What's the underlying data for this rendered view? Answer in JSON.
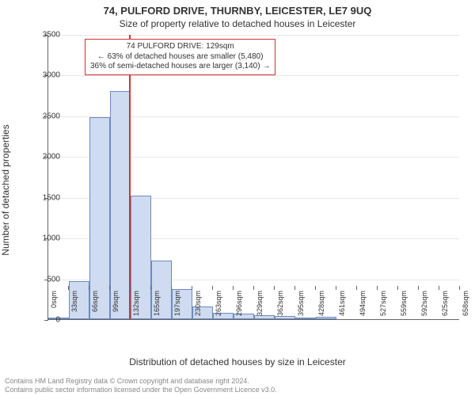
{
  "title_main": "74, PULFORD DRIVE, THURNBY, LEICESTER, LE7 9UQ",
  "title_sub": "Size of property relative to detached houses in Leicester",
  "ylabel": "Number of detached properties",
  "xlabel": "Distribution of detached houses by size in Leicester",
  "footer_line1": "Contains HM Land Registry data © Crown copyright and database right 2024.",
  "footer_line2": "Contains public sector information licensed under the Open Government Licence v3.0.",
  "annotation": {
    "line1": "74 PULFORD DRIVE: 129sqm",
    "line2": "← 63% of detached houses are smaller (5,480)",
    "line3": "36% of semi-detached houses are larger (3,140) →"
  },
  "chart": {
    "type": "histogram",
    "background_color": "#ffffff",
    "grid_color": "#e8e8e8",
    "axis_color": "#666666",
    "bar_fill": "#cedbf0",
    "bar_stroke": "#6d8abf",
    "marker_color": "#d23333",
    "marker_value": 129,
    "ylim": [
      0,
      3500
    ],
    "ytick_step": 500,
    "xticks": [
      0,
      33,
      66,
      99,
      132,
      165,
      197,
      230,
      263,
      296,
      329,
      362,
      395,
      428,
      461,
      494,
      527,
      559,
      592,
      625,
      658
    ],
    "xtick_unit": "sqm",
    "bar_bin_width": 33,
    "bars": [
      {
        "x0": 0,
        "value": 20
      },
      {
        "x0": 33,
        "value": 470
      },
      {
        "x0": 66,
        "value": 2480
      },
      {
        "x0": 99,
        "value": 2800
      },
      {
        "x0": 132,
        "value": 1520
      },
      {
        "x0": 165,
        "value": 720
      },
      {
        "x0": 197,
        "value": 370
      },
      {
        "x0": 230,
        "value": 160
      },
      {
        "x0": 263,
        "value": 80
      },
      {
        "x0": 296,
        "value": 70
      },
      {
        "x0": 329,
        "value": 50
      },
      {
        "x0": 362,
        "value": 40
      },
      {
        "x0": 395,
        "value": 20
      },
      {
        "x0": 428,
        "value": 25
      },
      {
        "x0": 461,
        "value": 0
      },
      {
        "x0": 494,
        "value": 0
      },
      {
        "x0": 527,
        "value": 0
      },
      {
        "x0": 559,
        "value": 0
      },
      {
        "x0": 592,
        "value": 0
      },
      {
        "x0": 625,
        "value": 0
      }
    ],
    "title_fontsize": 13,
    "subtitle_fontsize": 12,
    "axis_label_fontsize": 12,
    "tick_fontsize": 10,
    "annotation_fontsize": 10
  }
}
